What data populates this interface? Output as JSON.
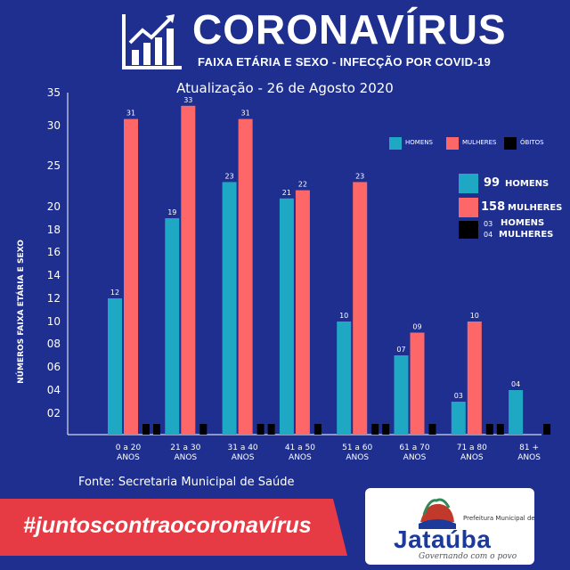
{
  "header": {
    "title": "CORONAVÍRUS",
    "subtitle": "FAIXA ETÁRIA E SEXO - INFECÇÃO POR COVID-19",
    "update": "Atualização - 26 de Agosto 2020"
  },
  "legend": {
    "homens": "HOMENS",
    "mulheres": "MULHERES",
    "obitos": "ÓBITOS"
  },
  "totals": {
    "men_count": "99",
    "men_label": "HOMENS",
    "women_count": "158",
    "women_label": "MULHERES",
    "deaths_men_count": "03",
    "deaths_men_label": "HOMENS",
    "deaths_women_count": "04",
    "deaths_women_label": "MULHERES"
  },
  "footer": {
    "source": "Fonte: Secretaria Municipal de Saúde",
    "hashtag": "#juntoscontraocoronavírus",
    "logo_small": "Prefeitura Municipal de",
    "logo_name": "Jataúba",
    "logo_slogan": "Governando com o povo"
  },
  "colors": {
    "background": "#1e2f8f",
    "homens": "#1fa8c4",
    "mulheres": "#fd6767",
    "obitos": "#000000",
    "banner": "#e63a44"
  },
  "icons": [
    "chart-icon",
    "logo-sun-icon"
  ],
  "chart_data": {
    "type": "bar",
    "ylabel": "NÚMEROS FAIXA ETÁRIA E SEXO",
    "ylim": [
      0,
      35
    ],
    "yticks": [
      {
        "v": 2,
        "label": "02"
      },
      {
        "v": 4,
        "label": "04"
      },
      {
        "v": 6,
        "label": "06"
      },
      {
        "v": 8,
        "label": "08"
      },
      {
        "v": 10,
        "label": "10"
      },
      {
        "v": 12,
        "label": "12"
      },
      {
        "v": 14,
        "label": "14"
      },
      {
        "v": 16,
        "label": "16"
      },
      {
        "v": 18,
        "label": "18"
      },
      {
        "v": 20,
        "label": "20"
      },
      {
        "v": 25,
        "label": "25"
      },
      {
        "v": 30,
        "label": "30"
      },
      {
        "v": 35,
        "label": "35"
      }
    ],
    "categories": [
      [
        "0 a 20",
        "ANOS"
      ],
      [
        "21 a 30",
        "ANOS"
      ],
      [
        "31 a 40",
        "ANOS"
      ],
      [
        "41 a 50",
        "ANOS"
      ],
      [
        "51 a 60",
        "ANOS"
      ],
      [
        "61 a 70",
        "ANOS"
      ],
      [
        "71 a 80",
        "ANOS"
      ],
      [
        "81 +",
        "ANOS"
      ]
    ],
    "series": [
      {
        "name": "HOMENS",
        "color": "#1fa8c4",
        "values": [
          12,
          19,
          23,
          21,
          10,
          7,
          3,
          4
        ],
        "labels": [
          "12",
          "19",
          "23",
          "21",
          "10",
          "07",
          "03",
          "04"
        ]
      },
      {
        "name": "MULHERES",
        "color": "#fd6767",
        "values": [
          31,
          33,
          31,
          22,
          23,
          9,
          10,
          null
        ],
        "labels": [
          "31",
          "33",
          "31",
          "22",
          "23",
          "09",
          "10",
          ""
        ]
      },
      {
        "name": "ÓBITOS",
        "color": "#000000",
        "values": [
          1,
          1,
          1,
          1,
          1,
          1,
          1,
          1
        ],
        "paired": [
          true,
          false,
          true,
          false,
          true,
          false,
          true,
          false
        ]
      }
    ]
  }
}
